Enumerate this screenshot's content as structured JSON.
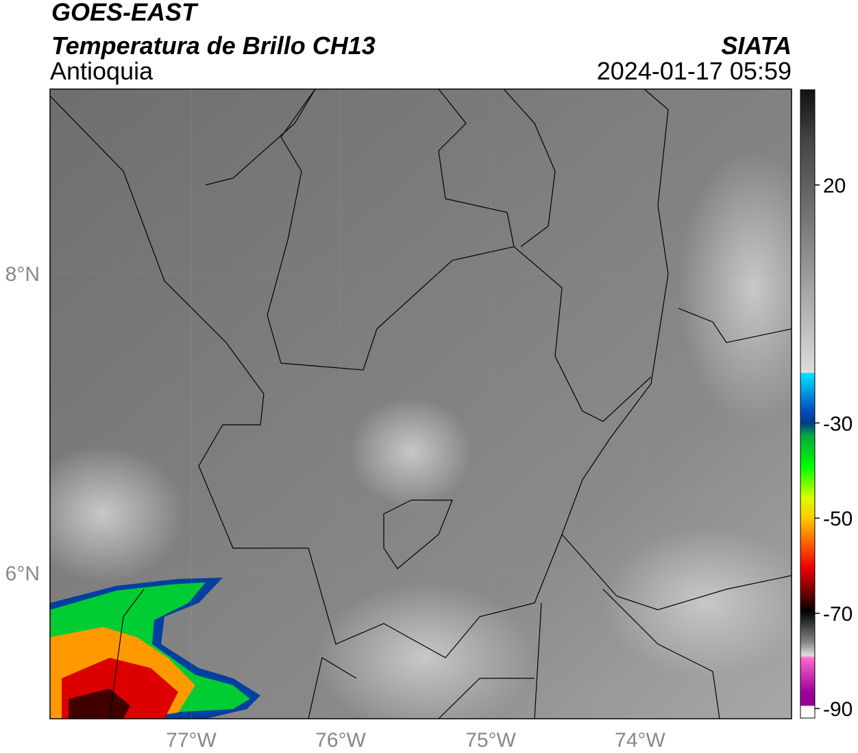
{
  "header": {
    "title": "GOES-EAST",
    "subtitle": "Temperatura de Brillo CH13",
    "region": "Antioquia",
    "source": "SIATA",
    "datetime": "2024-01-17 05:59"
  },
  "map": {
    "lat_labels": [
      "8°N",
      "6°N"
    ],
    "lon_labels": [
      "77°W",
      "76°W",
      "75°W",
      "74°W"
    ]
  },
  "colorbar": {
    "lim": [
      -92,
      40
    ],
    "ticks": [
      20,
      -30,
      -50,
      -70,
      -90
    ]
  }
}
